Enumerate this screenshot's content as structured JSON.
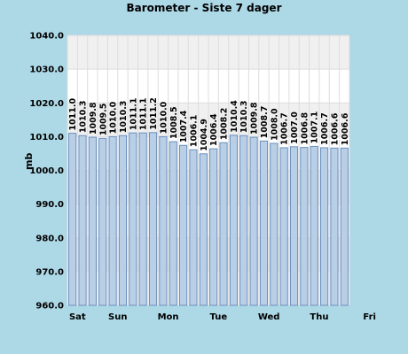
{
  "chart_data": {
    "type": "bar",
    "title": "Barometer - Siste 7 dager",
    "ylabel": "mb",
    "xlabel": "",
    "ylim": [
      960,
      1040
    ],
    "y_ticks": [
      "960.0",
      "970.0",
      "980.0",
      "990.0",
      "1000.0",
      "1010.0",
      "1020.0",
      "1030.0",
      "1040.0"
    ],
    "x_labels": [
      {
        "label": "Sat",
        "index": 1
      },
      {
        "label": "Sun",
        "index": 5
      },
      {
        "label": "Mon",
        "index": 10
      },
      {
        "label": "Tue",
        "index": 15
      },
      {
        "label": "Wed",
        "index": 20
      },
      {
        "label": "Thu",
        "index": 25
      },
      {
        "label": "Fri",
        "index": 30
      }
    ],
    "values": [
      1011.0,
      1010.3,
      1009.8,
      1009.5,
      1010.0,
      1010.3,
      1011.1,
      1011.1,
      1011.2,
      1010.0,
      1008.5,
      1007.4,
      1006.1,
      1004.9,
      1006.4,
      1008.2,
      1010.4,
      1010.3,
      1009.8,
      1008.7,
      1008.0,
      1006.7,
      1007.0,
      1006.8,
      1007.1,
      1006.7,
      1006.6,
      1006.6
    ],
    "value_labels": [
      "1011.0",
      "1010.3",
      "1009.8",
      "1009.5",
      "1010.0",
      "1010.3",
      "1011.1",
      "1011.1",
      "1011.2",
      "1010.0",
      "1008.5",
      "1007.4",
      "1006.1",
      "1004.9",
      "1006.4",
      "1008.2",
      "1010.4",
      "1010.3",
      "1009.8",
      "1008.7",
      "1008.0",
      "1006.7",
      "1007.0",
      "1006.8",
      "1007.1",
      "1006.7",
      "1006.6",
      "1006.6"
    ],
    "grid": true,
    "colors": {
      "page_background": "#add8e6",
      "plot_background": "#ffffff",
      "plot_band": "#f0f0f0",
      "bar_fill": "#b9cfe6",
      "bar_stroke": "#6a8fbf"
    }
  }
}
